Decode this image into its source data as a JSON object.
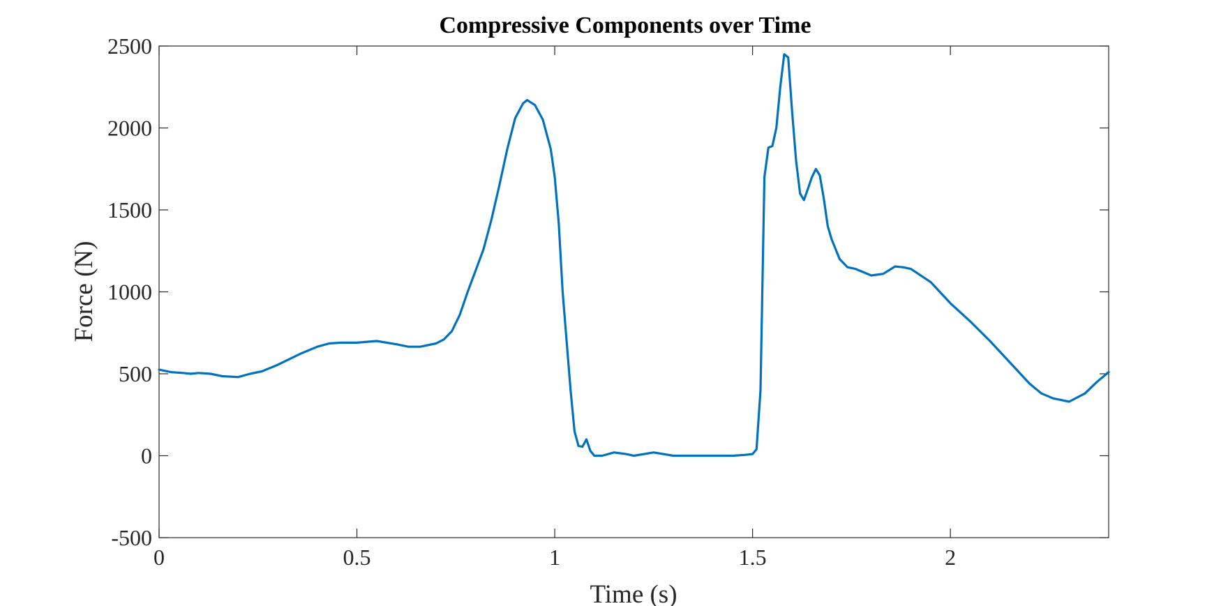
{
  "chart_data": {
    "type": "line",
    "title": "Compressive Components over Time",
    "xlabel": "Time (s)",
    "ylabel": "Force (N)",
    "xlim": [
      0,
      2.4
    ],
    "ylim": [
      -500,
      2500
    ],
    "xticks": [
      0,
      0.5,
      1,
      1.5,
      2
    ],
    "xtick_labels": [
      "0",
      "0.5",
      "1",
      "1.5",
      "2"
    ],
    "yticks": [
      -500,
      0,
      500,
      1000,
      1500,
      2000,
      2500
    ],
    "ytick_labels": [
      "-500",
      "0",
      "500",
      "1000",
      "1500",
      "2000",
      "2500"
    ],
    "grid": false,
    "series": [
      {
        "color": "#0072BD",
        "x": [
          0,
          0.03,
          0.06,
          0.08,
          0.1,
          0.13,
          0.16,
          0.2,
          0.23,
          0.26,
          0.3,
          0.33,
          0.36,
          0.4,
          0.43,
          0.46,
          0.5,
          0.55,
          0.6,
          0.63,
          0.66,
          0.7,
          0.72,
          0.74,
          0.76,
          0.78,
          0.8,
          0.82,
          0.84,
          0.86,
          0.88,
          0.9,
          0.92,
          0.93,
          0.95,
          0.97,
          0.99,
          1.0,
          1.01,
          1.02,
          1.03,
          1.04,
          1.05,
          1.06,
          1.07,
          1.08,
          1.09,
          1.1,
          1.12,
          1.15,
          1.18,
          1.2,
          1.25,
          1.3,
          1.35,
          1.4,
          1.45,
          1.48,
          1.5,
          1.51,
          1.52,
          1.53,
          1.54,
          1.55,
          1.56,
          1.57,
          1.58,
          1.59,
          1.6,
          1.61,
          1.62,
          1.63,
          1.64,
          1.65,
          1.66,
          1.67,
          1.68,
          1.69,
          1.7,
          1.72,
          1.74,
          1.76,
          1.8,
          1.83,
          1.86,
          1.88,
          1.9,
          1.95,
          2.0,
          2.05,
          2.1,
          2.15,
          2.2,
          2.23,
          2.26,
          2.28,
          2.3,
          2.34,
          2.37,
          2.4
        ],
        "y": [
          525,
          510,
          505,
          500,
          505,
          500,
          485,
          480,
          500,
          515,
          555,
          590,
          625,
          665,
          685,
          690,
          690,
          700,
          680,
          665,
          665,
          685,
          710,
          760,
          860,
          1000,
          1130,
          1260,
          1440,
          1650,
          1870,
          2060,
          2150,
          2170,
          2140,
          2050,
          1870,
          1700,
          1420,
          1000,
          700,
          400,
          150,
          60,
          55,
          100,
          30,
          0,
          0,
          20,
          10,
          0,
          20,
          0,
          0,
          0,
          0,
          5,
          10,
          40,
          400,
          1700,
          1880,
          1890,
          2000,
          2250,
          2450,
          2430,
          2100,
          1800,
          1600,
          1560,
          1630,
          1700,
          1750,
          1710,
          1570,
          1400,
          1320,
          1200,
          1150,
          1140,
          1100,
          1110,
          1155,
          1150,
          1140,
          1060,
          930,
          820,
          700,
          570,
          440,
          380,
          350,
          340,
          330,
          380,
          450,
          510
        ]
      }
    ]
  }
}
